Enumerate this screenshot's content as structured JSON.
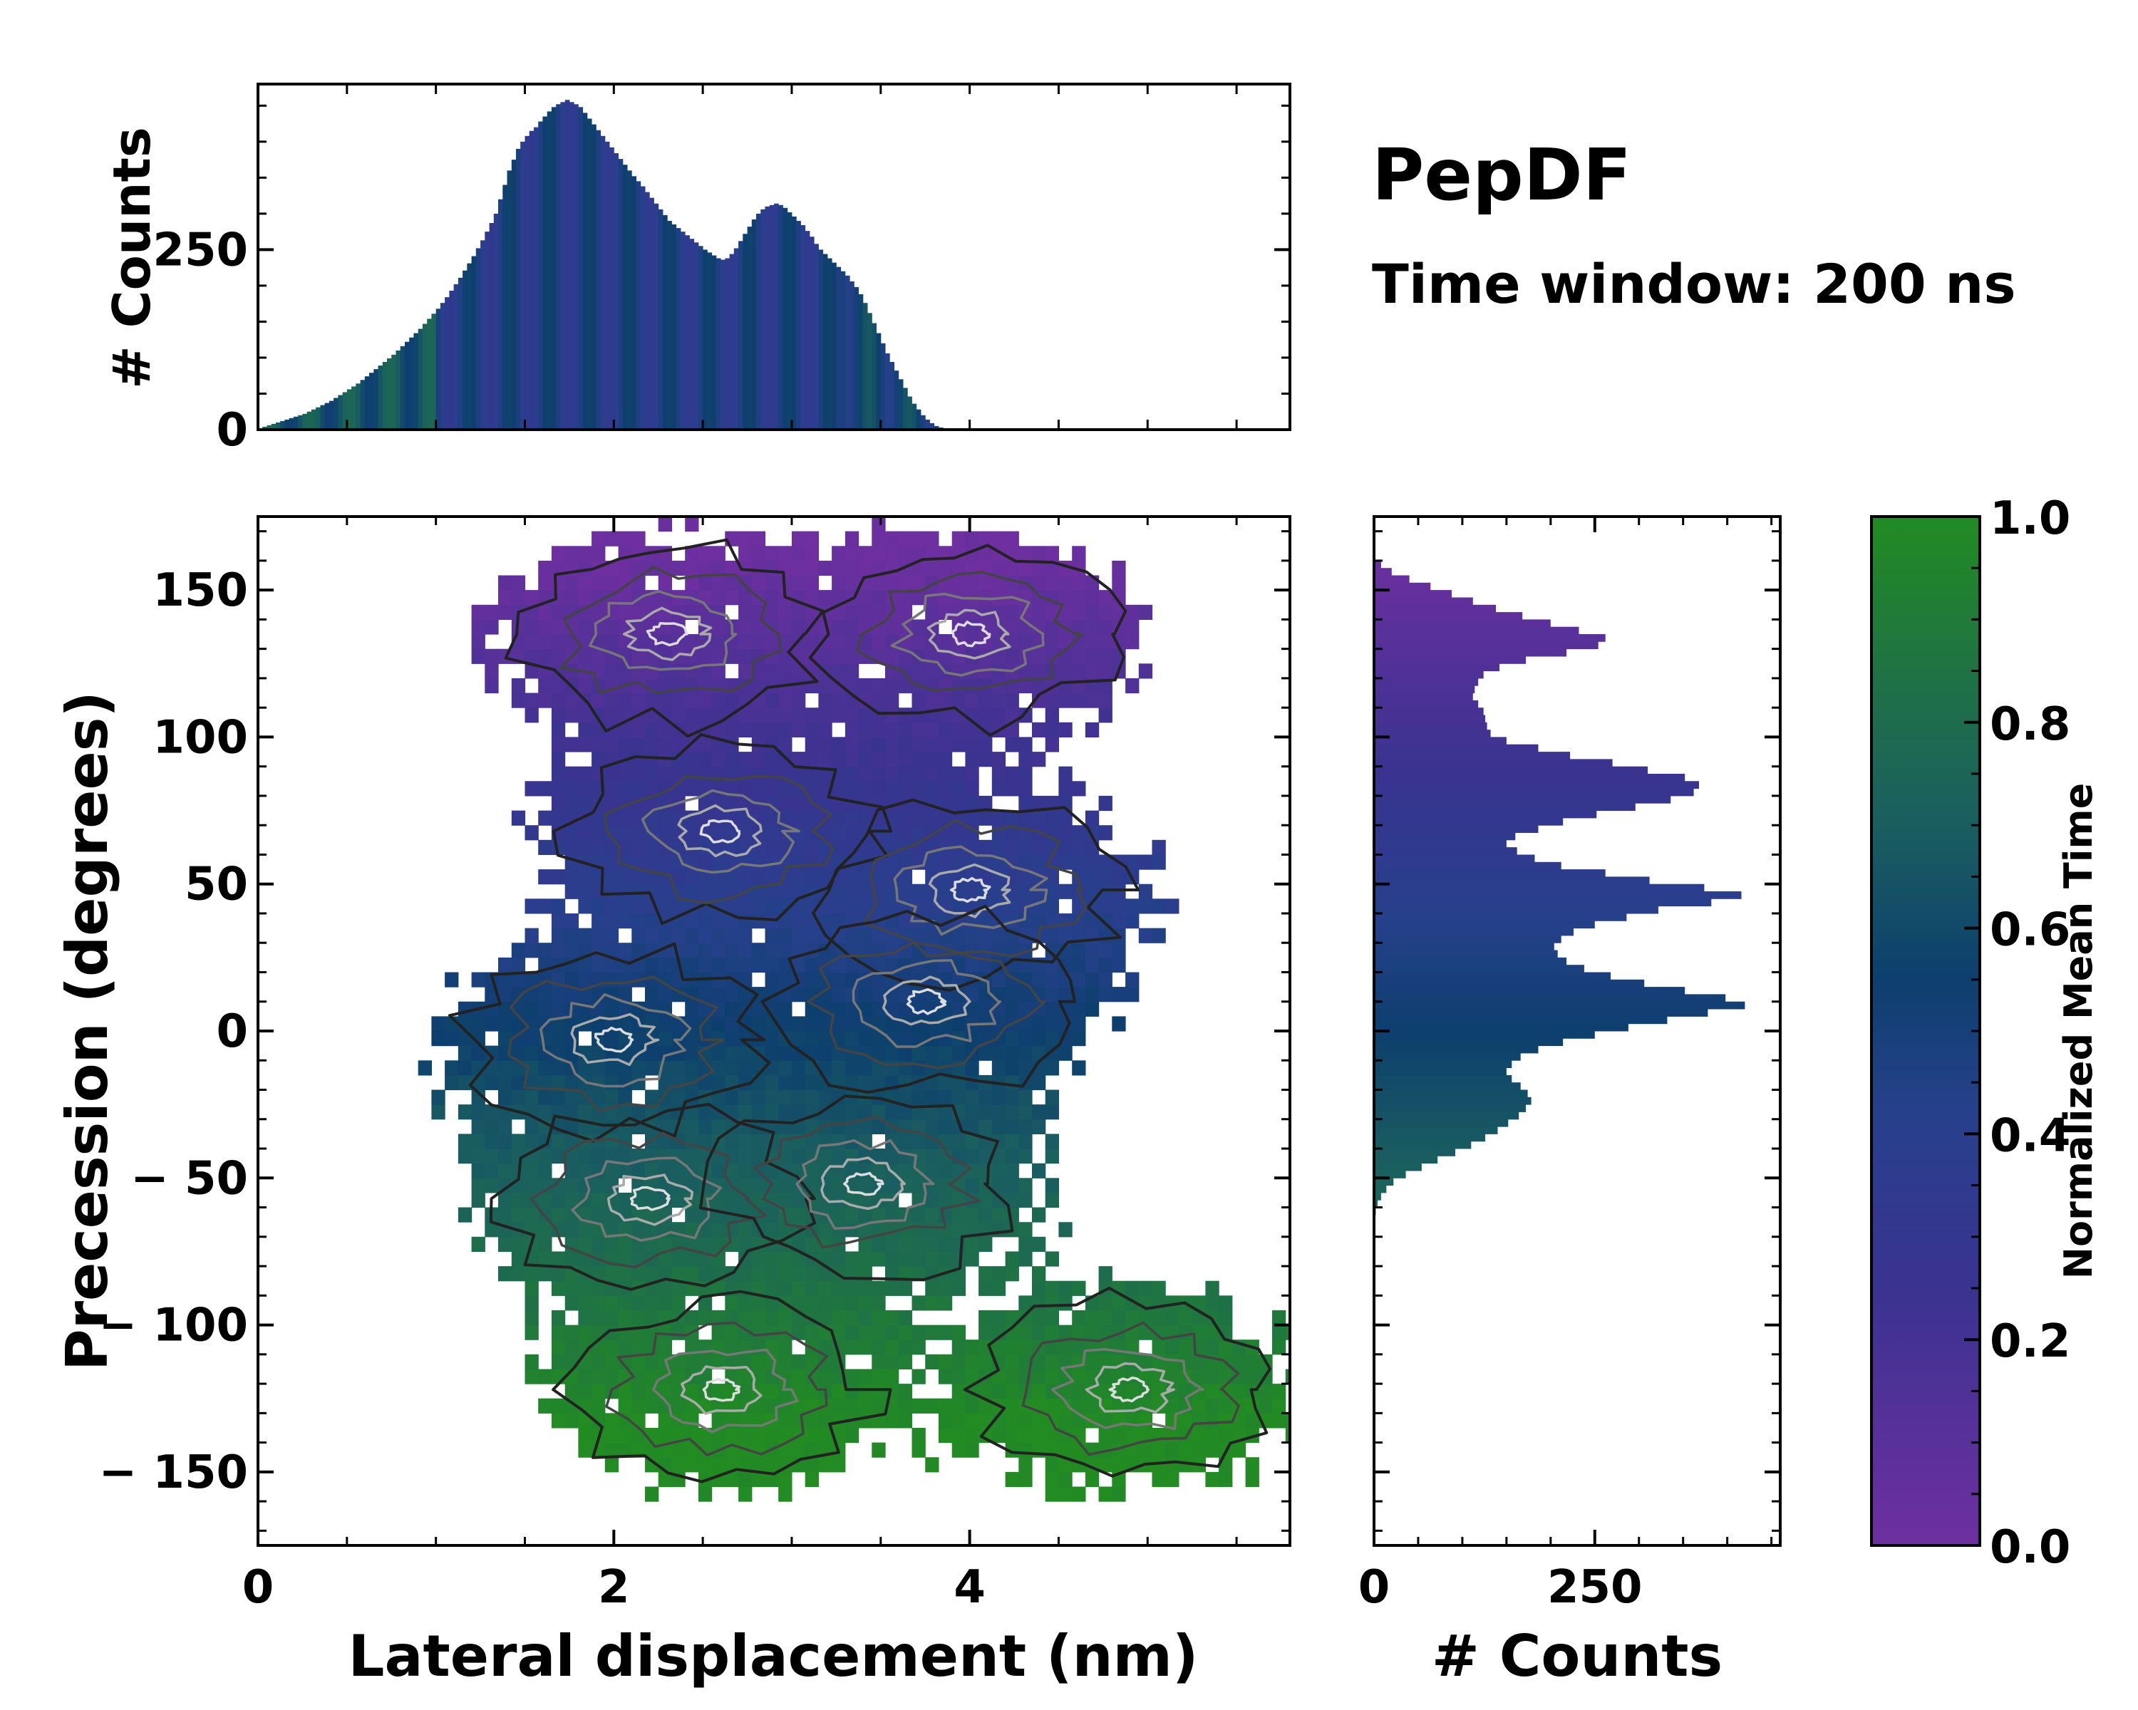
{
  "chart_data": [
    {
      "id": "main",
      "type": "heatmap",
      "xlabel": "Lateral displacement (nm)",
      "ylabel": "Precession (degrees)",
      "xlim": [
        0,
        5.8
      ],
      "ylim": [
        -175,
        175
      ],
      "xticks": [
        0,
        2,
        4
      ],
      "yticks": [
        150,
        100,
        50,
        0,
        -50,
        -100,
        -150
      ],
      "ytick_labels": [
        "150",
        "100",
        "50",
        "0",
        "− 50",
        "− 100",
        "− 150"
      ],
      "color_variable": "Normalized Mean Time",
      "contour_centers": [
        {
          "x": 2.3,
          "y": 135
        },
        {
          "x": 4.0,
          "y": 135
        },
        {
          "x": 2.6,
          "y": 68
        },
        {
          "x": 4.0,
          "y": 48
        },
        {
          "x": 2.0,
          "y": -3
        },
        {
          "x": 3.75,
          "y": 10
        },
        {
          "x": 2.2,
          "y": -57
        },
        {
          "x": 3.4,
          "y": -52
        },
        {
          "x": 4.9,
          "y": -122
        },
        {
          "x": 2.6,
          "y": -122
        }
      ]
    },
    {
      "id": "top-hist",
      "type": "bar",
      "ylabel": "# Counts",
      "xlim": [
        0,
        5.8
      ],
      "ylim": [
        0,
        480
      ],
      "yticks": [
        0,
        250
      ],
      "x_start": 0,
      "x_step": 0.025,
      "values": [
        2,
        4,
        6,
        8,
        10,
        12,
        14,
        16,
        18,
        20,
        22,
        25,
        28,
        31,
        34,
        37,
        40,
        44,
        48,
        52,
        56,
        60,
        64,
        69,
        74,
        79,
        84,
        89,
        94,
        99,
        104,
        110,
        116,
        122,
        128,
        134,
        140,
        147,
        154,
        161,
        168,
        176,
        184,
        193,
        202,
        211,
        221,
        231,
        241,
        252,
        263,
        275,
        287,
        300,
        320,
        340,
        360,
        375,
        390,
        400,
        408,
        415,
        420,
        428,
        435,
        442,
        448,
        452,
        455,
        458,
        455,
        452,
        448,
        440,
        432,
        424,
        416,
        408,
        400,
        392,
        384,
        376,
        368,
        360,
        352,
        345,
        338,
        330,
        322,
        314,
        306,
        298,
        290,
        285,
        280,
        275,
        270,
        265,
        260,
        255,
        250,
        246,
        242,
        238,
        236,
        238,
        244,
        252,
        262,
        272,
        282,
        292,
        300,
        306,
        310,
        312,
        314,
        312,
        308,
        302,
        296,
        290,
        284,
        276,
        268,
        258,
        250,
        244,
        238,
        232,
        226,
        220,
        214,
        206,
        198,
        188,
        176,
        162,
        148,
        134,
        120,
        106,
        94,
        82,
        70,
        58,
        46,
        36,
        28,
        20,
        14,
        9,
        5,
        3,
        2,
        1,
        1,
        1,
        1,
        1
      ]
    },
    {
      "id": "right-hist",
      "type": "bar",
      "orientation": "horizontal",
      "xlabel": "# Counts",
      "xlim": [
        0,
        460
      ],
      "xticks": [
        0,
        250
      ],
      "ylim": [
        -175,
        175
      ],
      "y_start": 175,
      "y_step": -2.5,
      "values": [
        0,
        0,
        0,
        0,
        0,
        0,
        8,
        20,
        40,
        64,
        88,
        112,
        138,
        168,
        200,
        232,
        262,
        254,
        218,
        172,
        142,
        124,
        118,
        114,
        112,
        118,
        124,
        126,
        128,
        132,
        150,
        186,
        222,
        270,
        310,
        352,
        368,
        362,
        336,
        296,
        252,
        214,
        186,
        160,
        150,
        162,
        182,
        212,
        262,
        312,
        374,
        416,
        382,
        322,
        286,
        250,
        226,
        212,
        204,
        208,
        218,
        238,
        268,
        306,
        352,
        398,
        420,
        378,
        332,
        288,
        250,
        214,
        186,
        166,
        156,
        150,
        156,
        166,
        174,
        178,
        172,
        164,
        152,
        140,
        126,
        110,
        92,
        72,
        54,
        36,
        22,
        14,
        8,
        4,
        2,
        1,
        0,
        0,
        0,
        0,
        0,
        0,
        0,
        0,
        0,
        0,
        0,
        0,
        0,
        0,
        0,
        0,
        0,
        0,
        0,
        0,
        0,
        0,
        0,
        0,
        0,
        0,
        0,
        0,
        0,
        0,
        0,
        0,
        0,
        0,
        0,
        0,
        0,
        0,
        0,
        0,
        0,
        0,
        0,
        0
      ]
    },
    {
      "id": "colorbar",
      "type": "colorbar",
      "label": "Normalized Mean Time",
      "ylim": [
        0,
        1
      ],
      "ticks": [
        "1.0",
        "0.8",
        "0.6",
        "0.4",
        "0.2",
        "0.0"
      ]
    }
  ],
  "figure": {
    "title": "PepDF",
    "subtitle": "Time window: 200 ns"
  },
  "colors": {
    "low": "#6e2fa0",
    "mid_low": "#2e3c8c",
    "mid": "#0d3f6e",
    "mid_high": "#1e6e4a",
    "high": "#228b22",
    "frame": "#000000",
    "contour_inner": "#cccccc",
    "contour_outer": "#222222"
  }
}
